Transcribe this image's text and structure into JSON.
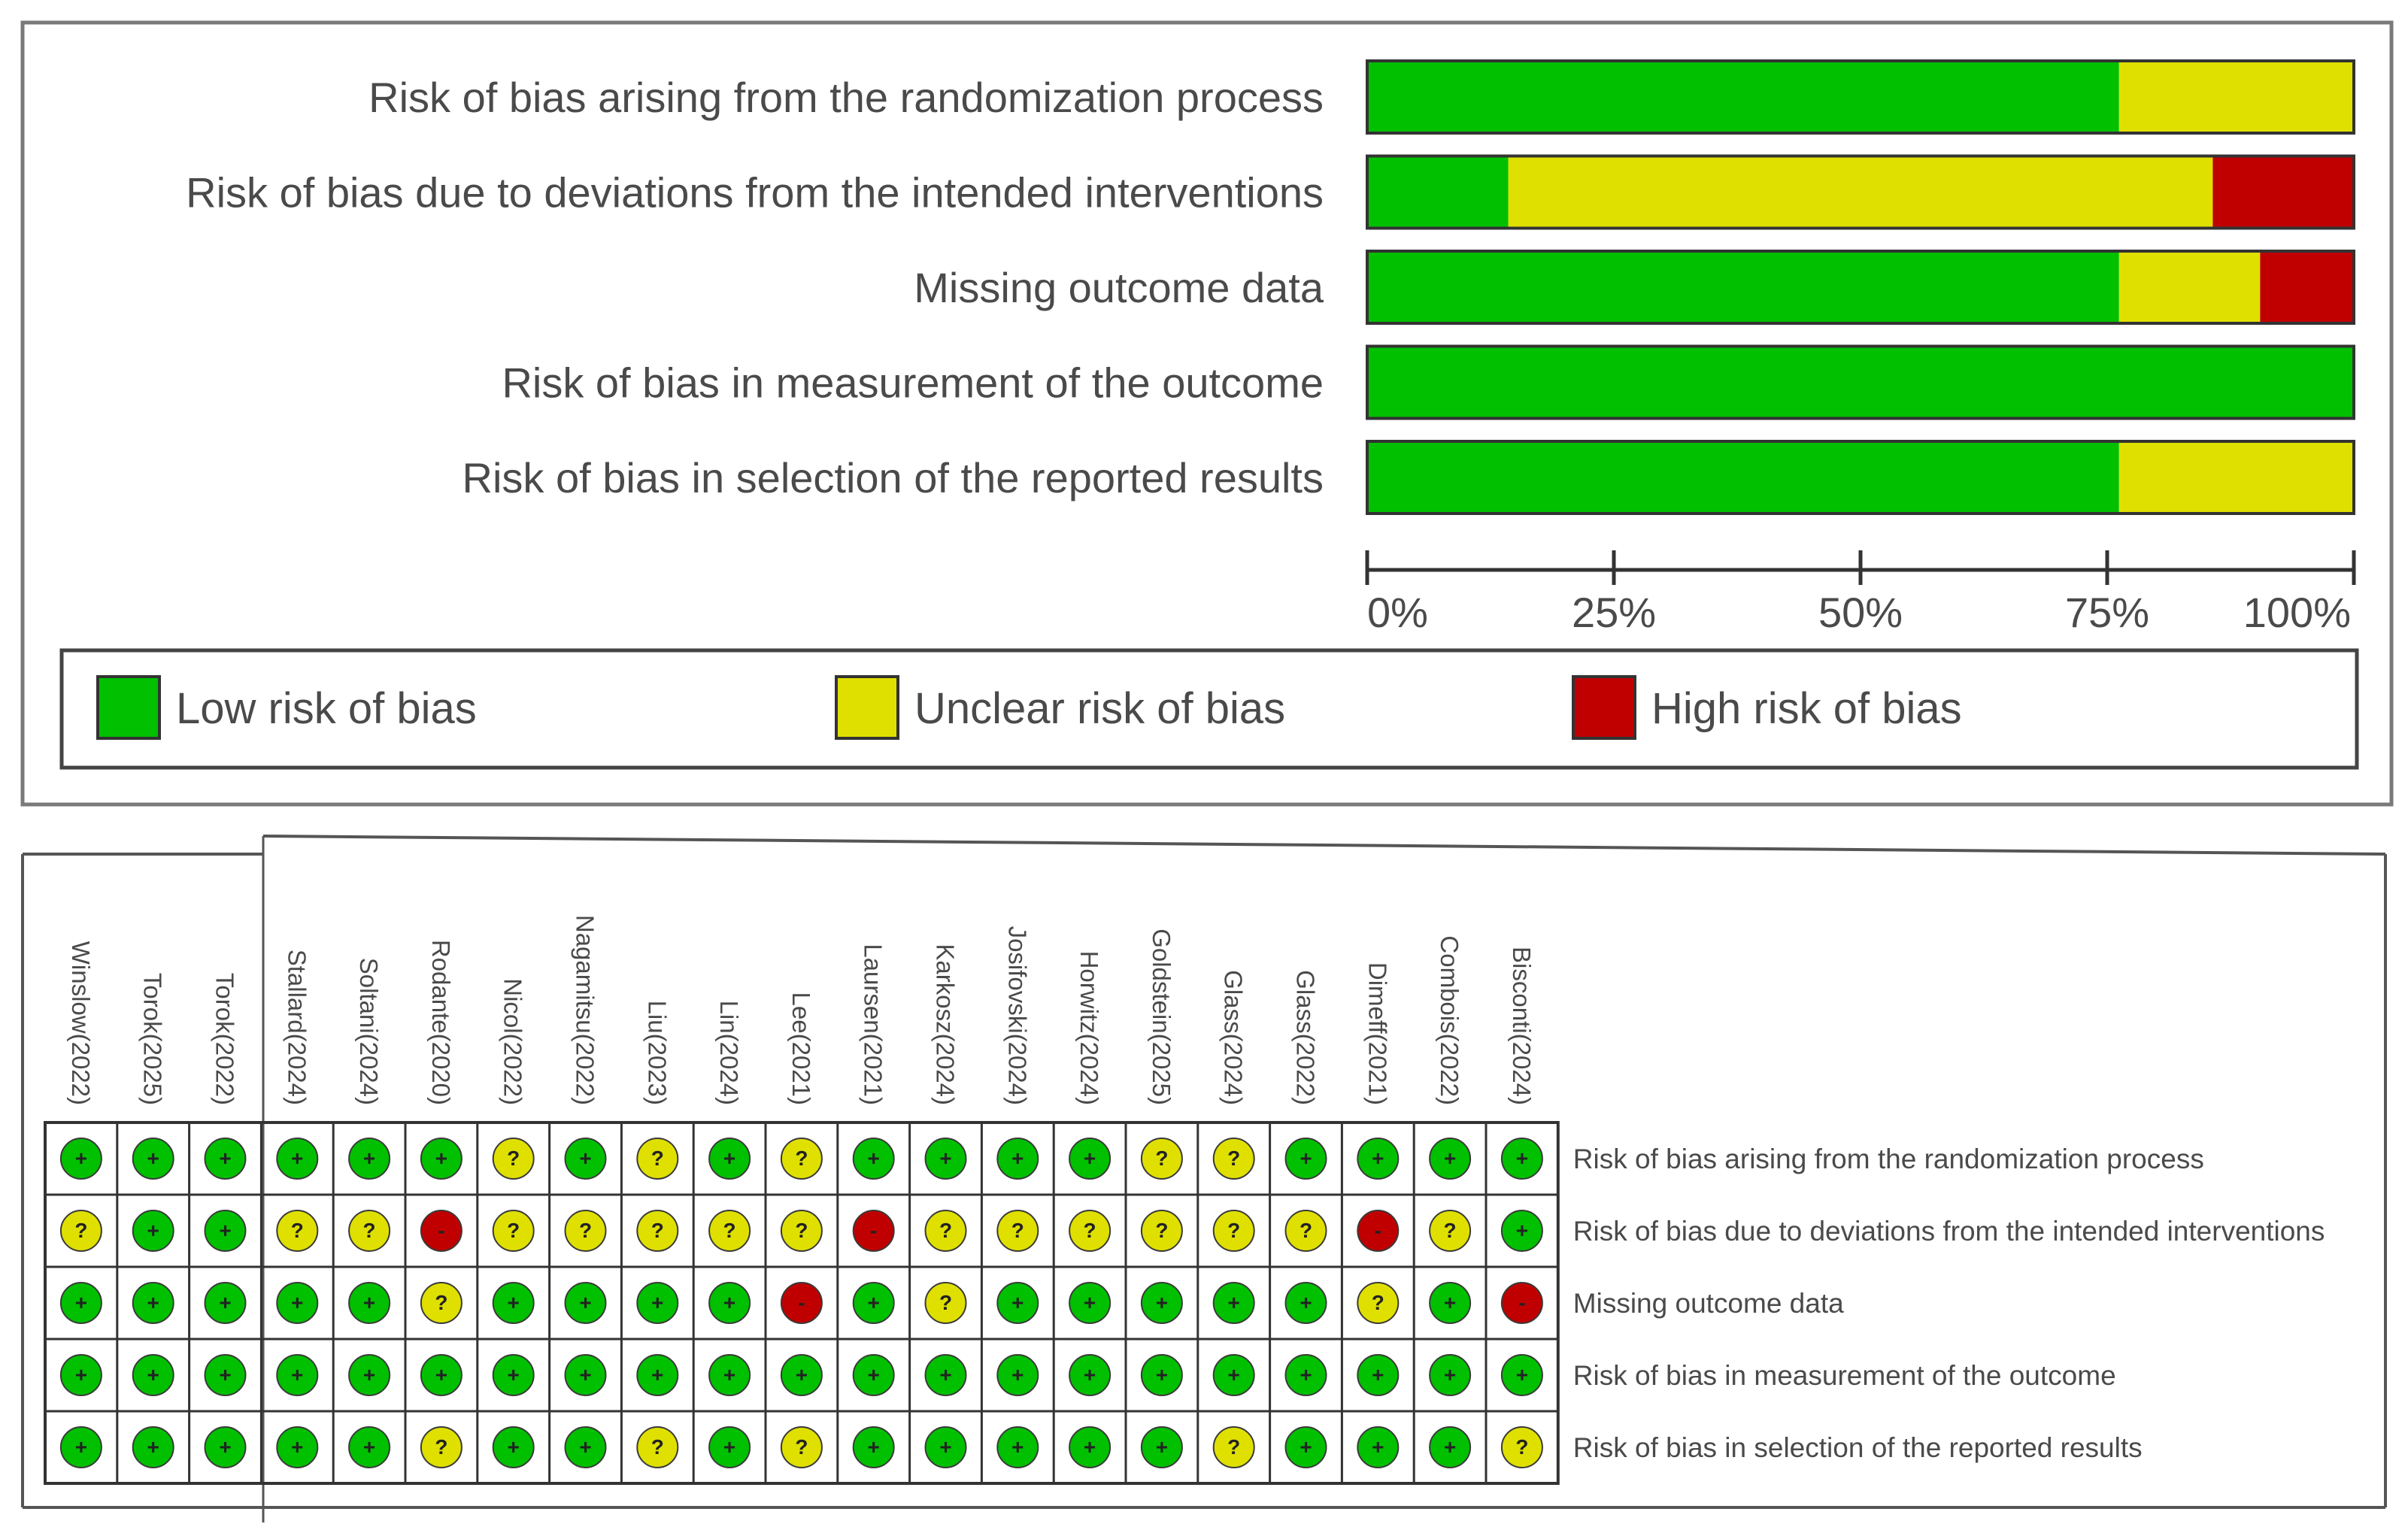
{
  "chart_data": [
    {
      "type": "bar",
      "stacked": true,
      "orientation": "horizontal",
      "categories": [
        "Risk of bias arising from the randomization process",
        "Risk of bias due to deviations from the intended interventions",
        "Missing outcome data",
        "Risk of bias in measurement of the outcome",
        "Risk of bias in selection of the reported results"
      ],
      "series": [
        {
          "name": "Low risk of bias",
          "color": "#00c000",
          "values": [
            76.2,
            14.3,
            76.2,
            100,
            76.2
          ]
        },
        {
          "name": "Unclear risk of bias",
          "color": "#e0e000",
          "values": [
            23.8,
            71.4,
            14.3,
            0,
            23.8
          ]
        },
        {
          "name": "High risk of bias",
          "color": "#c00000",
          "values": [
            0,
            14.3,
            9.5,
            0,
            0
          ]
        }
      ],
      "xticks": [
        "0%",
        "25%",
        "50%",
        "75%",
        "100%"
      ],
      "xlim": [
        0,
        100
      ],
      "legend_position": "bottom"
    },
    {
      "type": "table",
      "studies": [
        "Winslow(2022)",
        "Torok(2025)",
        "Torok(2022)",
        "Stallard(2024)",
        "Soltani(2024)",
        "Rodante(2020)",
        "Nicol(2022)",
        "Nagamitsu(2022)",
        "Liu(2023)",
        "Lin(2024)",
        "Lee(2021)",
        "Laursen(2021)",
        "Karkosz(2024)",
        "Josifovski(2024)",
        "Horwitz(2024)",
        "Goldstein(2025)",
        "Glass(2024)",
        "Glass(2022)",
        "Dimeff(2021)",
        "Combois(2022)",
        "Bisconti(2024)"
      ],
      "domains": [
        "Risk of bias arising from the randomization process",
        "Risk of bias due to deviations from the intended interventions",
        "Missing outcome data",
        "Risk of bias in measurement of the outcome",
        "Risk of bias in selection of the reported results"
      ],
      "symbols": {
        "low": {
          "glyph": "+",
          "color": "#00c000"
        },
        "unclear": {
          "glyph": "?",
          "color": "#e0e000"
        },
        "high": {
          "glyph": "-",
          "color": "#c00000"
        }
      },
      "judgements": [
        [
          "low",
          "low",
          "low",
          "low",
          "low",
          "low",
          "unclear",
          "low",
          "unclear",
          "low",
          "unclear",
          "low",
          "low",
          "low",
          "low",
          "unclear",
          "unclear",
          "low",
          "low",
          "low",
          "low"
        ],
        [
          "unclear",
          "low",
          "low",
          "unclear",
          "unclear",
          "high",
          "unclear",
          "unclear",
          "unclear",
          "unclear",
          "unclear",
          "high",
          "unclear",
          "unclear",
          "unclear",
          "unclear",
          "unclear",
          "unclear",
          "high",
          "unclear",
          "low"
        ],
        [
          "low",
          "low",
          "low",
          "low",
          "low",
          "unclear",
          "low",
          "low",
          "low",
          "low",
          "high",
          "low",
          "unclear",
          "low",
          "low",
          "low",
          "low",
          "low",
          "unclear",
          "low",
          "high"
        ],
        [
          "low",
          "low",
          "low",
          "low",
          "low",
          "low",
          "low",
          "low",
          "low",
          "low",
          "low",
          "low",
          "low",
          "low",
          "low",
          "low",
          "low",
          "low",
          "low",
          "low",
          "low"
        ],
        [
          "low",
          "low",
          "low",
          "low",
          "low",
          "unclear",
          "low",
          "low",
          "unclear",
          "low",
          "unclear",
          "low",
          "low",
          "low",
          "low",
          "low",
          "unclear",
          "low",
          "low",
          "low",
          "unclear"
        ]
      ]
    }
  ]
}
